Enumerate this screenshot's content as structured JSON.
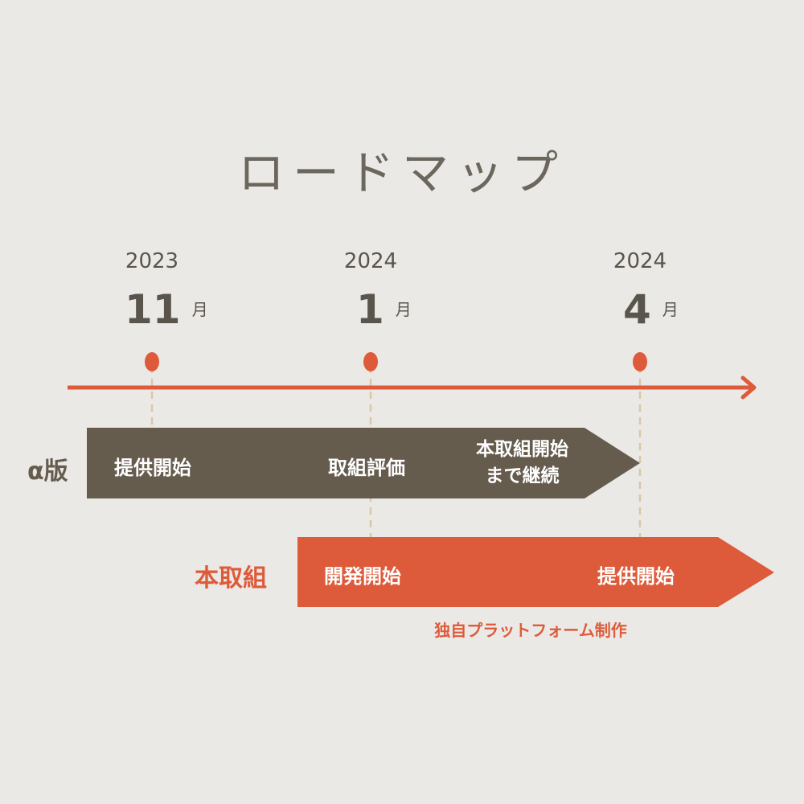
{
  "title": "ロードマップ",
  "colors": {
    "background": "#ebe9e6",
    "dark": "#655c4e",
    "accent": "#dd5b3a",
    "guide": "#d8c8a8"
  },
  "milestones": [
    {
      "year": "2023",
      "month": "11",
      "unit": "月"
    },
    {
      "year": "2024",
      "month": "1",
      "unit": "月"
    },
    {
      "year": "2024",
      "month": "4",
      "unit": "月"
    }
  ],
  "tracks": [
    {
      "label": "α版",
      "items": [
        "提供開始",
        "取組評価",
        "本取組開始\nまで継続"
      ]
    },
    {
      "label": "本取組",
      "items": [
        "開発開始",
        "提供開始"
      ],
      "note": "独自プラットフォーム制作"
    }
  ]
}
